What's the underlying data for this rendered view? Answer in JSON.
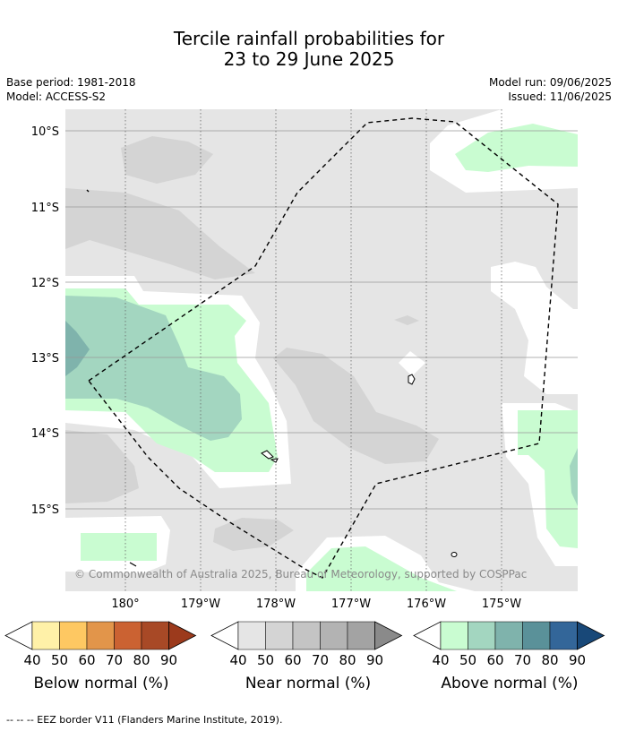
{
  "header": {
    "title_line1": "Tercile rainfall probabilities for",
    "title_line2": "23 to 29 June 2025",
    "base_period": "Base period: 1981-2018",
    "model": "Model: ACCESS-S2",
    "model_run": "Model run: 09/06/2025",
    "issued": "Issued: 11/06/2025"
  },
  "map": {
    "lat_labels": [
      "10°S",
      "11°S",
      "12°S",
      "13°S",
      "14°S",
      "15°S"
    ],
    "lon_labels": [
      "180°",
      "179°W",
      "178°W",
      "177°W",
      "176°W",
      "175°W"
    ],
    "copyright": "© Commonwealth of Australia 2025, Bureau of Meteorology, supported by COSPPac",
    "colors": {
      "near_normal_40": "#e5e5e5",
      "near_normal_50": "#d4d4d4",
      "above_normal_40": "#c9fcd1",
      "above_normal_50": "#a3d6c0",
      "above_normal_60": "#7fb3ac"
    }
  },
  "colorbars": [
    {
      "name": "below",
      "label": "Below normal (%)",
      "ticks": [
        "40",
        "50",
        "60",
        "70",
        "80",
        "90"
      ],
      "colors": [
        "#fff1a8",
        "#fec862",
        "#e2954a",
        "#cb6232",
        "#a84926",
        "#9c3a1c"
      ]
    },
    {
      "name": "near",
      "label": "Near normal (%)",
      "ticks": [
        "40",
        "50",
        "60",
        "70",
        "80",
        "90"
      ],
      "colors": [
        "#e5e5e5",
        "#d4d4d4",
        "#c4c4c4",
        "#b3b3b3",
        "#a3a3a3",
        "#8a8a8a"
      ]
    },
    {
      "name": "above",
      "label": "Above normal (%)",
      "ticks": [
        "40",
        "50",
        "60",
        "70",
        "80",
        "90"
      ],
      "colors": [
        "#c9fcd1",
        "#a3d6c0",
        "#7fb3ac",
        "#5a9199",
        "#336699",
        "#184878"
      ]
    }
  ],
  "footnote": "--  --  -- EEZ border V11 (Flanders Marine Institute, 2019)."
}
